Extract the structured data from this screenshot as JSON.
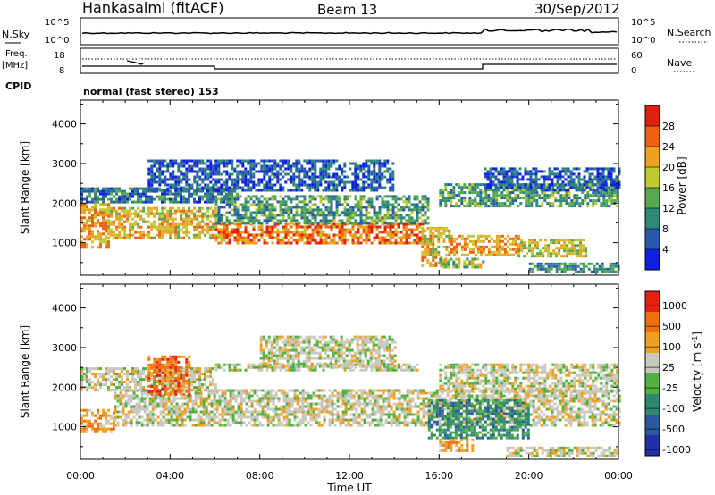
{
  "header": {
    "station": "Hankasalmi (fitACF)",
    "beam": "Beam 13",
    "date": "30/Sep/2012"
  },
  "noise_panel": {
    "left_label": "N.Sky",
    "right_label": "N.Search",
    "left_ticks": [
      "10^5",
      "10^0"
    ],
    "right_ticks": [
      "10^5",
      "10^0"
    ]
  },
  "freq_panel": {
    "left_label_top": "Freq.",
    "left_label_unit": "[MHz]",
    "left_ticks": [
      "18",
      "8"
    ],
    "right_label": "Nave",
    "right_ticks": [
      "60",
      "0"
    ]
  },
  "cpid": {
    "label": "CPID",
    "value": "normal (fast stereo) 153"
  },
  "x_axis": {
    "label": "Time UT",
    "ticks": [
      "00:00",
      "04:00",
      "08:00",
      "12:00",
      "16:00",
      "20:00",
      "00:00"
    ]
  },
  "colors": {
    "background": "#ffffff",
    "ground_scatter": "#c8c8c0"
  },
  "chart_data": [
    {
      "type": "heatmap",
      "title": "",
      "xlabel": "Time UT",
      "ylabel": "Slant Range [km]",
      "xlim": [
        0,
        24
      ],
      "ylim": [
        180,
        4600
      ],
      "yticks": [
        "1000",
        "2000",
        "3000",
        "4000"
      ],
      "colorbar": {
        "label": "Power [dB]",
        "ticks": [
          "4",
          "8",
          "12",
          "16",
          "20",
          "24",
          "28"
        ],
        "range": [
          0,
          32
        ],
        "colors": [
          "#1020e0",
          "#2858b0",
          "#2e8878",
          "#58a850",
          "#c0c830",
          "#f0a020",
          "#f06010",
          "#e02010"
        ]
      },
      "bands": [
        {
          "t0": 0.0,
          "t1": 1.2,
          "r0": 850,
          "r1": 2000,
          "level": 22
        },
        {
          "t0": 1.2,
          "t1": 6.0,
          "r0": 1100,
          "r1": 1900,
          "level": 20
        },
        {
          "t0": 6.0,
          "t1": 15.3,
          "r0": 1000,
          "r1": 1500,
          "level": 25
        },
        {
          "t0": 0.0,
          "t1": 7.0,
          "r0": 2000,
          "r1": 2400,
          "level": 8
        },
        {
          "t0": 6.0,
          "t1": 15.5,
          "r0": 1500,
          "r1": 2200,
          "level": 12
        },
        {
          "t0": 3.0,
          "t1": 14.0,
          "r0": 2300,
          "r1": 3100,
          "level": 6
        },
        {
          "t0": 15.2,
          "t1": 16.5,
          "r0": 400,
          "r1": 1400,
          "level": 20
        },
        {
          "t0": 16.0,
          "t1": 18.0,
          "r0": 380,
          "r1": 620,
          "level": 16
        },
        {
          "t0": 16.5,
          "t1": 19.5,
          "r0": 700,
          "r1": 1200,
          "level": 22
        },
        {
          "t0": 16.0,
          "t1": 24.0,
          "r0": 1900,
          "r1": 2500,
          "level": 12
        },
        {
          "t0": 18.0,
          "t1": 24.0,
          "r0": 2300,
          "r1": 2900,
          "level": 6
        },
        {
          "t0": 20.0,
          "t1": 24.0,
          "r0": 250,
          "r1": 500,
          "level": 10
        },
        {
          "t0": 19.5,
          "t1": 22.5,
          "r0": 650,
          "r1": 1100,
          "level": 18
        }
      ]
    },
    {
      "type": "heatmap",
      "title": "",
      "xlabel": "Time UT",
      "ylabel": "Slant Range [km]",
      "xlim": [
        0,
        24
      ],
      "ylim": [
        180,
        4600
      ],
      "yticks": [
        "1000",
        "2000",
        "3000",
        "4000"
      ],
      "colorbar": {
        "label": "Velocity [m s^-1]",
        "ticks": [
          "1000",
          "500",
          "100",
          "25",
          "-25",
          "-100",
          "-500",
          "-1000"
        ],
        "colors": [
          "#2030a8",
          "#2c58a0",
          "#2e8870",
          "#50b040",
          "#c8c8c0",
          "#f0a020",
          "#f07010",
          "#e82010"
        ]
      },
      "bands": [
        {
          "t0": 0.0,
          "t1": 1.5,
          "r0": 850,
          "r1": 1450,
          "level": 5
        },
        {
          "t0": 1.5,
          "t1": 24.0,
          "r0": 1050,
          "r1": 1950,
          "level": 4
        },
        {
          "t0": 0.0,
          "t1": 6.0,
          "r0": 1900,
          "r1": 2500,
          "level": 4
        },
        {
          "t0": 6.0,
          "t1": 15.0,
          "r0": 2400,
          "r1": 2600,
          "level": 4
        },
        {
          "t0": 15.5,
          "t1": 20.0,
          "r0": 700,
          "r1": 1700,
          "level": 2
        },
        {
          "t0": 16.0,
          "t1": 24.0,
          "r0": 1900,
          "r1": 2600,
          "level": 4
        },
        {
          "t0": 3.0,
          "t1": 4.8,
          "r0": 1800,
          "r1": 2800,
          "level": 6
        },
        {
          "t0": 8.0,
          "t1": 14.0,
          "r0": 2500,
          "r1": 3300,
          "level": 4
        },
        {
          "t0": 16.0,
          "t1": 17.5,
          "r0": 400,
          "r1": 700,
          "level": 5
        },
        {
          "t0": 19.0,
          "t1": 24.0,
          "r0": 250,
          "r1": 500,
          "level": 4
        }
      ]
    }
  ]
}
